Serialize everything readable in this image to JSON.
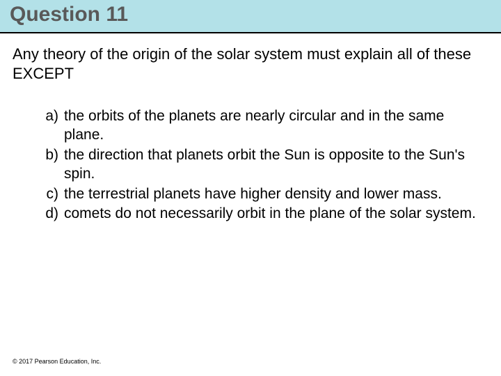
{
  "title": "Question 11",
  "title_color": "#595959",
  "title_bg_color": "#b3e1e8",
  "underline_color": "#000000",
  "question_text": "Any theory of the origin of the solar system must explain all of these EXCEPT",
  "options": [
    {
      "letter": "a)",
      "text": "the orbits of the planets are nearly circular and in the same plane."
    },
    {
      "letter": "b)",
      "text": "the direction that planets orbit the Sun is opposite to the Sun's spin."
    },
    {
      "letter": "c)",
      "text": "the terrestrial planets have higher density and lower mass."
    },
    {
      "letter": "d)",
      "text": "comets do not necessarily orbit in the plane of the solar system."
    }
  ],
  "copyright": "© 2017 Pearson Education, Inc.",
  "text_color": "#000000",
  "background_color": "#ffffff",
  "title_fontsize": 30,
  "body_fontsize": 22,
  "option_fontsize": 21,
  "copyright_fontsize": 9
}
